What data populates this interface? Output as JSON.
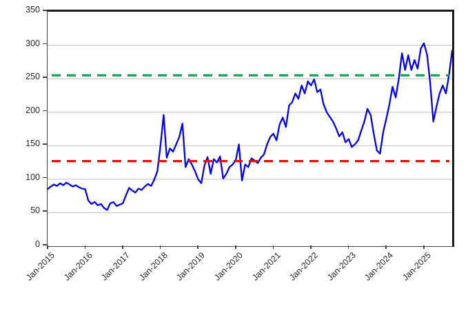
{
  "chart_data": {
    "type": "line",
    "y_range": [
      0,
      350
    ],
    "y_ticks": [
      0,
      50,
      100,
      150,
      200,
      250,
      300,
      350
    ],
    "x_tick_labels": [
      "Jan-2015",
      "Jan-2016",
      "Jan-2017",
      "Jan-2018",
      "Jan-2019",
      "Jan-2020",
      "Jan-2021",
      "Jan-2022",
      "Jan-2023",
      "Jan-2024",
      "Jan-2025"
    ],
    "x_tick_month_indices": [
      0,
      12,
      24,
      36,
      48,
      60,
      72,
      84,
      96,
      108,
      120
    ],
    "x_start_month": "Jan-2015",
    "x_end_month": "Oct-2025",
    "grid": {
      "horizontal": true,
      "vertical": false,
      "color": "#bfbfbf"
    },
    "legend": "none",
    "series": [
      {
        "name": "blue-price-series",
        "color": "#0000ee",
        "style": "solid",
        "monthly_values": [
          85,
          89,
          92,
          90,
          94,
          91,
          95,
          92,
          89,
          91,
          88,
          86,
          85,
          68,
          63,
          66,
          61,
          63,
          57,
          54,
          64,
          66,
          60,
          62,
          64,
          76,
          87,
          83,
          80,
          86,
          84,
          89,
          93,
          90,
          99,
          112,
          150,
          196,
          132,
          146,
          141,
          152,
          163,
          183,
          118,
          130,
          122,
          112,
          100,
          94,
          120,
          133,
          108,
          130,
          125,
          134,
          101,
          108,
          118,
          122,
          128,
          152,
          98,
          122,
          118,
          131,
          128,
          124,
          132,
          137,
          152,
          163,
          168,
          158,
          182,
          192,
          178,
          210,
          215,
          228,
          220,
          240,
          228,
          246,
          240,
          249,
          230,
          234,
          212,
          200,
          193,
          186,
          176,
          164,
          170,
          155,
          160,
          148,
          152,
          158,
          172,
          186,
          205,
          196,
          168,
          143,
          138,
          170,
          190,
          212,
          238,
          222,
          250,
          288,
          263,
          285,
          263,
          278,
          265,
          295,
          303,
          286,
          244,
          186,
          208,
          228,
          240,
          228,
          255,
          292
        ]
      }
    ],
    "reference_lines": [
      {
        "name": "upper-green-dashed",
        "value": 255,
        "color": "#00a651",
        "style": "dashed"
      },
      {
        "name": "lower-red-dashed",
        "value": 127,
        "color": "#ff0000",
        "style": "dashed"
      }
    ]
  },
  "colors": {
    "background": "#ffffff",
    "plot_border": "#1a1a1a",
    "axis": "#404040",
    "tick_label": "#262626",
    "gridline": "#bfbfbf"
  }
}
